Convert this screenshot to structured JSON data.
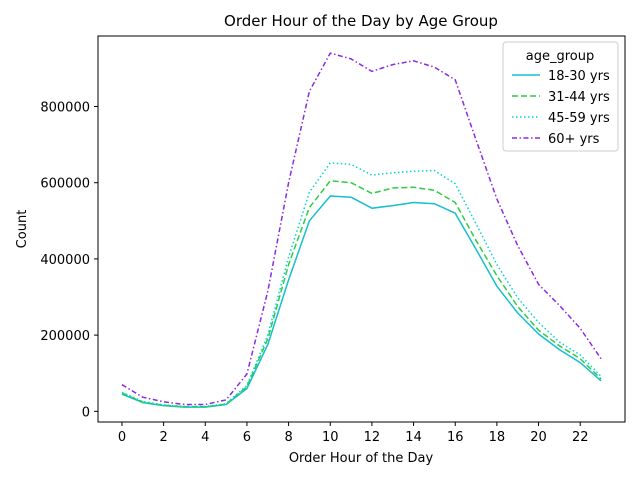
{
  "chart_data": {
    "type": "line",
    "title": "Order Hour of the Day by Age Group",
    "xlabel": "Order Hour of the Day",
    "ylabel": "Count",
    "xlim": [
      -1.15,
      24.15
    ],
    "ylim": [
      -28000,
      985000
    ],
    "xticks": [
      0,
      2,
      4,
      6,
      8,
      10,
      12,
      14,
      16,
      18,
      20,
      22
    ],
    "yticks": [
      0,
      200000,
      400000,
      600000,
      800000
    ],
    "grid": false,
    "legend": {
      "title": "age_group",
      "placement": "top-right"
    },
    "x": [
      0,
      1,
      2,
      3,
      4,
      5,
      6,
      7,
      8,
      9,
      10,
      11,
      12,
      13,
      14,
      15,
      16,
      17,
      18,
      19,
      20,
      21,
      22,
      23
    ],
    "series": [
      {
        "name": "18-30 yrs",
        "color": "#17becf",
        "dash": "solid",
        "values": [
          45000,
          23000,
          15000,
          11000,
          11000,
          18000,
          60000,
          175000,
          345000,
          500000,
          565000,
          562000,
          533000,
          540000,
          548000,
          545000,
          520000,
          425000,
          328000,
          258000,
          203000,
          162000,
          128000,
          80000
        ]
      },
      {
        "name": "31-44 yrs",
        "color": "#2ecc40",
        "dash": "dashed",
        "values": [
          48000,
          24000,
          16000,
          12000,
          12000,
          19000,
          65000,
          190000,
          385000,
          535000,
          605000,
          600000,
          572000,
          586000,
          588000,
          580000,
          548000,
          448000,
          356000,
          275000,
          213000,
          172000,
          138000,
          85000
        ]
      },
      {
        "name": "45-59 yrs",
        "color": "#00d4d4",
        "dash": "dotted",
        "values": [
          50000,
          26000,
          17000,
          13000,
          13000,
          20000,
          68000,
          200000,
          405000,
          575000,
          652000,
          648000,
          620000,
          626000,
          630000,
          632000,
          597000,
          492000,
          385000,
          298000,
          233000,
          182000,
          148000,
          92000
        ]
      },
      {
        "name": "60+ yrs",
        "color": "#8a2be2",
        "dash": "dashdot",
        "values": [
          70000,
          37000,
          25000,
          18000,
          18000,
          30000,
          98000,
          315000,
          600000,
          840000,
          940000,
          925000,
          892000,
          910000,
          920000,
          903000,
          870000,
          712000,
          557000,
          435000,
          333000,
          278000,
          218000,
          138000
        ]
      }
    ]
  }
}
